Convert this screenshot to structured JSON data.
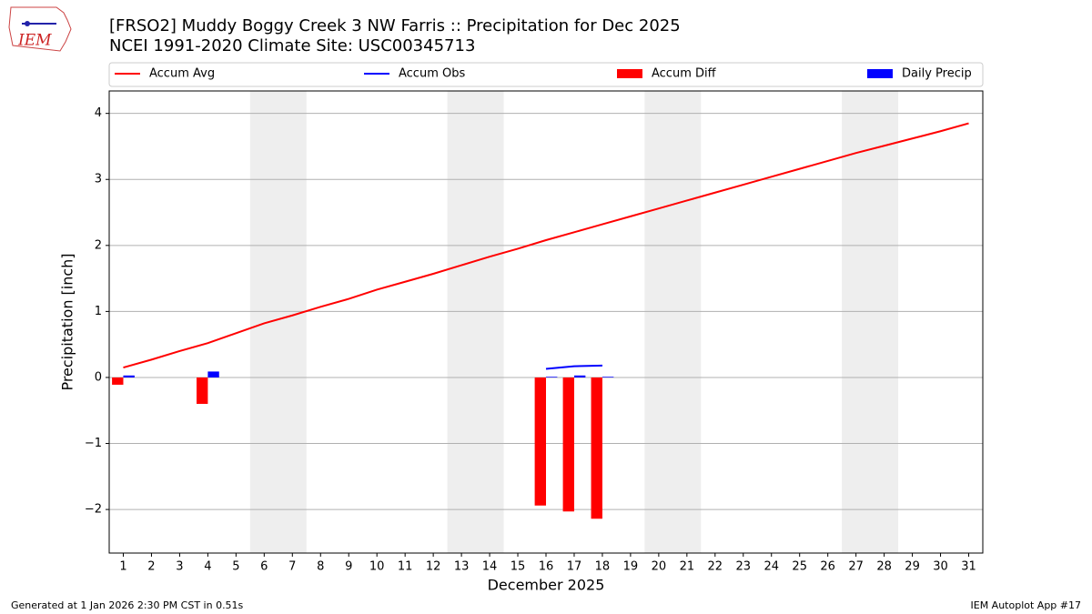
{
  "logo_text": "IEM",
  "chart_data": {
    "type": "combo",
    "title": "[FRSO2] Muddy Boggy Creek 3 NW Farris :: Precipitation for Dec 2025",
    "subtitle": "NCEI 1991-2020 Climate Site: USC00345713",
    "xlabel": "December 2025",
    "ylabel": "Precipitation [inch]",
    "x": [
      1,
      2,
      3,
      4,
      5,
      6,
      7,
      8,
      9,
      10,
      11,
      12,
      13,
      14,
      15,
      16,
      17,
      18,
      19,
      20,
      21,
      22,
      23,
      24,
      25,
      26,
      27,
      28,
      29,
      30,
      31
    ],
    "xlim": [
      0.5,
      31.5
    ],
    "xticks": [
      1,
      2,
      3,
      4,
      5,
      6,
      7,
      8,
      9,
      10,
      11,
      12,
      13,
      14,
      15,
      16,
      17,
      18,
      19,
      20,
      21,
      22,
      23,
      24,
      25,
      26,
      27,
      28,
      29,
      30,
      31
    ],
    "ylim": [
      -2.66,
      4.34
    ],
    "yticks": [
      {
        "value": -2,
        "label": "−2"
      },
      {
        "value": -1,
        "label": "−1"
      },
      0,
      1,
      2,
      3,
      4
    ],
    "grid": true,
    "shaded_ranges": [
      [
        5.5,
        7.5
      ],
      [
        12.5,
        14.5
      ],
      [
        19.5,
        21.5
      ],
      [
        26.5,
        28.5
      ]
    ],
    "shade_color": "#eeeeee",
    "legend": "top",
    "series": [
      {
        "name": "Accum Avg",
        "type": "line",
        "color": "#ff0000",
        "values": [
          0.15,
          0.27,
          0.4,
          0.52,
          0.67,
          0.82,
          0.94,
          1.07,
          1.19,
          1.33,
          1.45,
          1.57,
          1.7,
          1.83,
          1.95,
          2.08,
          2.2,
          2.32,
          2.44,
          2.56,
          2.68,
          2.8,
          2.92,
          3.04,
          3.16,
          3.28,
          3.4,
          3.51,
          3.62,
          3.73,
          3.85
        ]
      },
      {
        "name": "Accum Obs",
        "type": "line",
        "color": "#0000ff",
        "values": [
          null,
          null,
          null,
          null,
          null,
          null,
          null,
          null,
          null,
          null,
          null,
          null,
          null,
          null,
          null,
          0.13,
          0.17,
          0.18,
          null,
          null,
          null,
          null,
          null,
          null,
          null,
          null,
          null,
          null,
          null,
          null,
          null
        ]
      },
      {
        "name": "Accum Diff",
        "type": "bar",
        "side": "left",
        "color": "#ff0000",
        "values": [
          -0.11,
          null,
          null,
          -0.4,
          null,
          null,
          null,
          null,
          null,
          null,
          null,
          null,
          null,
          null,
          null,
          -1.94,
          -2.03,
          -2.14,
          null,
          null,
          null,
          null,
          null,
          null,
          null,
          null,
          null,
          null,
          null,
          null,
          null
        ]
      },
      {
        "name": "Daily Precip",
        "type": "bar",
        "side": "right",
        "color": "#0000ff",
        "values": [
          0.03,
          null,
          null,
          0.09,
          null,
          null,
          null,
          null,
          null,
          null,
          null,
          null,
          null,
          null,
          null,
          0.01,
          0.03,
          0.01,
          null,
          null,
          null,
          null,
          null,
          null,
          null,
          null,
          null,
          null,
          null,
          null,
          null
        ]
      }
    ]
  },
  "footer": {
    "left": "Generated at 1 Jan 2026 2:30 PM CST in 0.51s",
    "right": "IEM Autoplot App #17"
  }
}
